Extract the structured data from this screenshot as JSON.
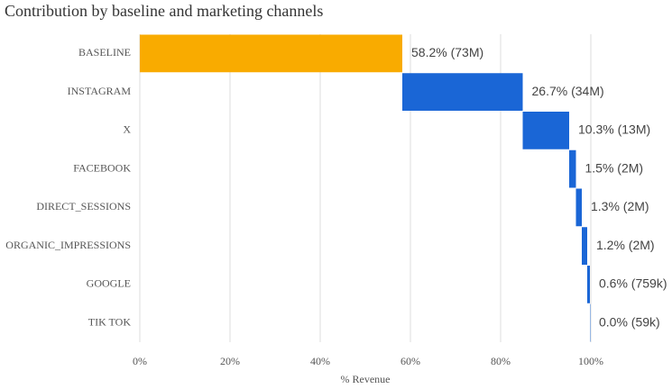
{
  "chart_data": {
    "type": "waterfall",
    "title": "Contribution by baseline and marketing channels",
    "x_label": "% Revenue",
    "categories": [
      "BASELINE",
      "INSTAGRAM",
      "X",
      "FACEBOOK",
      "DIRECT_SESSIONS",
      "ORGANIC_IMPRESSIONS",
      "GOOGLE",
      "TIK TOK"
    ],
    "values": [
      58.2,
      26.7,
      10.3,
      1.5,
      1.3,
      1.2,
      0.6,
      0.0
    ],
    "value_labels": [
      "58.2% (73M)",
      "26.7% (34M)",
      "10.3% (13M)",
      "1.5% (2M)",
      "1.3% (2M)",
      "1.2% (2M)",
      "0.6% (759k)",
      "0.0% (59k)"
    ],
    "colors": [
      "#f9ab00",
      "#1a66d6",
      "#1a66d6",
      "#1a66d6",
      "#1a66d6",
      "#1a66d6",
      "#1a66d6",
      "#1a66d6"
    ],
    "xlim": [
      0,
      117
    ],
    "xticks": [
      {
        "value": 0,
        "label": "0%"
      },
      {
        "value": 20,
        "label": "20%"
      },
      {
        "value": 40,
        "label": "40%"
      },
      {
        "value": 60,
        "label": "60%"
      },
      {
        "value": 80,
        "label": "80%"
      },
      {
        "value": 100,
        "label": "100%"
      }
    ],
    "grid": true
  }
}
